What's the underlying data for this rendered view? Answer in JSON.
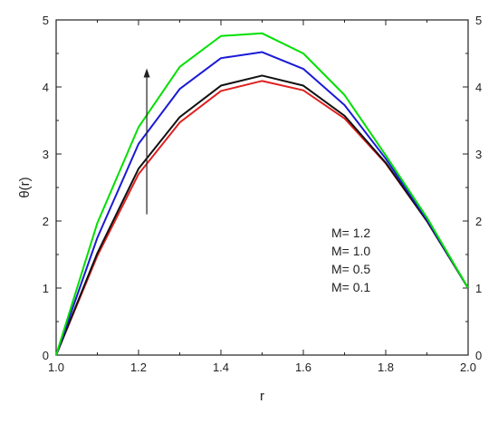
{
  "chart_data": {
    "type": "line",
    "title": "",
    "xlabel": "r",
    "ylabel": "θ(r)",
    "xlim": [
      1.0,
      2.0
    ],
    "ylim": [
      0,
      5
    ],
    "xticks": [
      "1.0",
      "1.2",
      "1.4",
      "1.6",
      "1.8",
      "2.0"
    ],
    "yticks": [
      "0",
      "1",
      "2",
      "3",
      "4",
      "5"
    ],
    "grid": false,
    "legend_position": "bottom-right",
    "x": [
      1.0,
      1.1,
      1.2,
      1.3,
      1.4,
      1.5,
      1.6,
      1.7,
      1.8,
      1.9,
      2.0
    ],
    "series": [
      {
        "name": "M= 1.2",
        "color": "#00e000",
        "values": [
          0,
          1.97,
          3.4,
          4.3,
          4.76,
          4.8,
          4.5,
          3.88,
          2.98,
          2.05,
          1.0
        ]
      },
      {
        "name": "M= 1.0",
        "color": "#1a1ad6",
        "values": [
          0,
          1.75,
          3.15,
          3.97,
          4.43,
          4.52,
          4.27,
          3.73,
          2.93,
          2.02,
          1.0
        ]
      },
      {
        "name": "M= 0.5",
        "color": "#111111",
        "values": [
          0,
          1.52,
          2.78,
          3.55,
          4.02,
          4.17,
          4.02,
          3.57,
          2.87,
          2.0,
          1.0
        ]
      },
      {
        "name": "M= 0.1",
        "color": "#e02020",
        "values": [
          0,
          1.48,
          2.7,
          3.47,
          3.94,
          4.09,
          3.95,
          3.53,
          2.86,
          2.0,
          1.0
        ]
      }
    ],
    "annotation": {
      "type": "arrow",
      "direction": "up",
      "x": 1.22,
      "y_from": 2.1,
      "y_to": 4.25,
      "color": "#222222"
    }
  }
}
